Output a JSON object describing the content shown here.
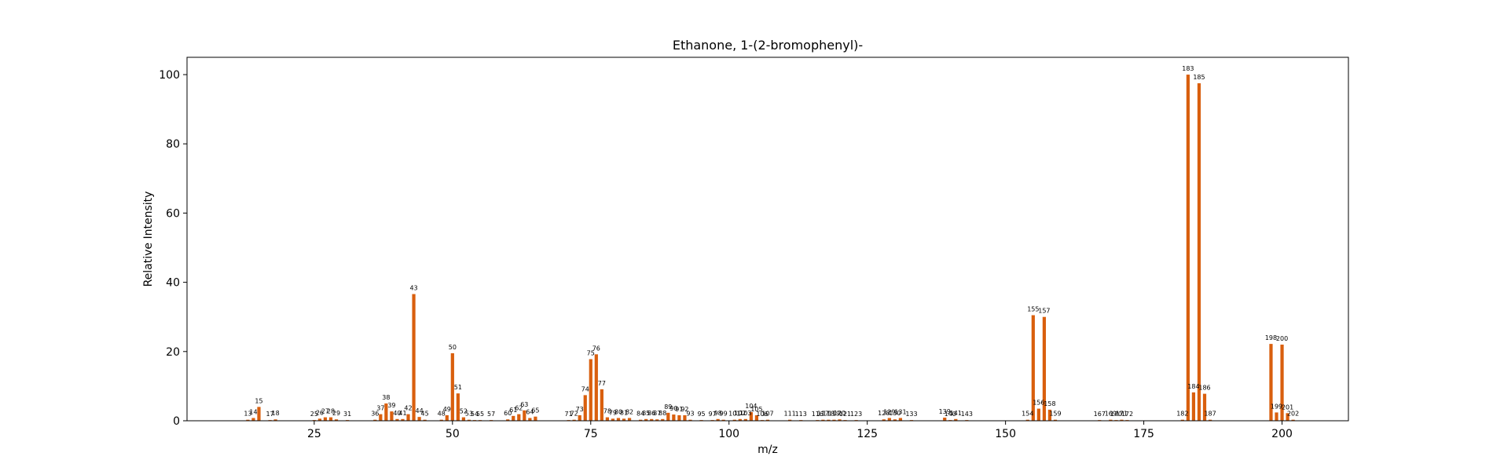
{
  "chart_data": {
    "type": "bar",
    "title": "Ethanone, 1-(2-bromophenyl)-",
    "xlabel": "m/z",
    "ylabel": "Relative Intensity",
    "xlim": [
      2,
      212
    ],
    "ylim": [
      0,
      105
    ],
    "x_ticks": [
      25,
      50,
      75,
      100,
      125,
      150,
      175,
      200
    ],
    "y_ticks": [
      0,
      20,
      40,
      60,
      80,
      100
    ],
    "bar_color": "#d95f0e",
    "grid": false,
    "peaks": [
      {
        "mz": 13,
        "intensity": 0.3
      },
      {
        "mz": 14,
        "intensity": 0.8
      },
      {
        "mz": 15,
        "intensity": 4.0
      },
      {
        "mz": 17,
        "intensity": 0.2
      },
      {
        "mz": 18,
        "intensity": 0.4
      },
      {
        "mz": 25,
        "intensity": 0.2
      },
      {
        "mz": 26,
        "intensity": 0.6
      },
      {
        "mz": 27,
        "intensity": 1.0
      },
      {
        "mz": 28,
        "intensity": 1.0
      },
      {
        "mz": 29,
        "intensity": 0.4
      },
      {
        "mz": 31,
        "intensity": 0.2
      },
      {
        "mz": 36,
        "intensity": 0.3
      },
      {
        "mz": 37,
        "intensity": 1.9
      },
      {
        "mz": 38,
        "intensity": 5.0
      },
      {
        "mz": 39,
        "intensity": 2.7
      },
      {
        "mz": 40,
        "intensity": 0.5
      },
      {
        "mz": 41,
        "intensity": 0.5
      },
      {
        "mz": 42,
        "intensity": 1.9
      },
      {
        "mz": 43,
        "intensity": 36.6
      },
      {
        "mz": 44,
        "intensity": 1.1
      },
      {
        "mz": 45,
        "intensity": 0.3
      },
      {
        "mz": 48,
        "intensity": 0.3
      },
      {
        "mz": 49,
        "intensity": 1.6
      },
      {
        "mz": 50,
        "intensity": 19.5
      },
      {
        "mz": 51,
        "intensity": 7.9
      },
      {
        "mz": 52,
        "intensity": 1.0
      },
      {
        "mz": 53,
        "intensity": 0.3
      },
      {
        "mz": 54,
        "intensity": 0.2
      },
      {
        "mz": 55,
        "intensity": 0.2
      },
      {
        "mz": 57,
        "intensity": 0.2
      },
      {
        "mz": 60,
        "intensity": 0.4
      },
      {
        "mz": 61,
        "intensity": 1.4
      },
      {
        "mz": 62,
        "intensity": 1.9
      },
      {
        "mz": 63,
        "intensity": 3.0
      },
      {
        "mz": 64,
        "intensity": 0.8
      },
      {
        "mz": 65,
        "intensity": 1.2
      },
      {
        "mz": 71,
        "intensity": 0.2
      },
      {
        "mz": 72,
        "intensity": 0.3
      },
      {
        "mz": 73,
        "intensity": 1.6
      },
      {
        "mz": 74,
        "intensity": 7.4
      },
      {
        "mz": 75,
        "intensity": 17.8
      },
      {
        "mz": 76,
        "intensity": 19.2
      },
      {
        "mz": 77,
        "intensity": 9.1
      },
      {
        "mz": 78,
        "intensity": 1.0
      },
      {
        "mz": 79,
        "intensity": 0.6
      },
      {
        "mz": 80,
        "intensity": 0.8
      },
      {
        "mz": 81,
        "intensity": 0.6
      },
      {
        "mz": 82,
        "intensity": 0.8
      },
      {
        "mz": 84,
        "intensity": 0.3
      },
      {
        "mz": 85,
        "intensity": 0.5
      },
      {
        "mz": 86,
        "intensity": 0.5
      },
      {
        "mz": 87,
        "intensity": 0.4
      },
      {
        "mz": 88,
        "intensity": 0.5
      },
      {
        "mz": 89,
        "intensity": 2.3
      },
      {
        "mz": 90,
        "intensity": 1.8
      },
      {
        "mz": 91,
        "intensity": 1.6
      },
      {
        "mz": 92,
        "intensity": 1.6
      },
      {
        "mz": 93,
        "intensity": 0.3
      },
      {
        "mz": 95,
        "intensity": 0.2
      },
      {
        "mz": 97,
        "intensity": 0.2
      },
      {
        "mz": 98,
        "intensity": 0.5
      },
      {
        "mz": 99,
        "intensity": 0.3
      },
      {
        "mz": 101,
        "intensity": 0.3
      },
      {
        "mz": 102,
        "intensity": 0.5
      },
      {
        "mz": 103,
        "intensity": 0.5
      },
      {
        "mz": 104,
        "intensity": 2.5
      },
      {
        "mz": 105,
        "intensity": 1.6
      },
      {
        "mz": 106,
        "intensity": 0.2
      },
      {
        "mz": 107,
        "intensity": 0.3
      },
      {
        "mz": 111,
        "intensity": 0.3
      },
      {
        "mz": 113,
        "intensity": 0.2
      },
      {
        "mz": 116,
        "intensity": 0.2
      },
      {
        "mz": 117,
        "intensity": 0.3
      },
      {
        "mz": 118,
        "intensity": 0.3
      },
      {
        "mz": 119,
        "intensity": 0.3
      },
      {
        "mz": 120,
        "intensity": 0.4
      },
      {
        "mz": 121,
        "intensity": 0.2
      },
      {
        "mz": 123,
        "intensity": 0.2
      },
      {
        "mz": 128,
        "intensity": 0.4
      },
      {
        "mz": 129,
        "intensity": 0.8
      },
      {
        "mz": 130,
        "intensity": 0.4
      },
      {
        "mz": 131,
        "intensity": 0.8
      },
      {
        "mz": 133,
        "intensity": 0.2
      },
      {
        "mz": 139,
        "intensity": 0.9
      },
      {
        "mz": 140,
        "intensity": 0.2
      },
      {
        "mz": 141,
        "intensity": 0.5
      },
      {
        "mz": 143,
        "intensity": 0.2
      },
      {
        "mz": 154,
        "intensity": 0.3
      },
      {
        "mz": 155,
        "intensity": 30.5
      },
      {
        "mz": 156,
        "intensity": 3.5
      },
      {
        "mz": 157,
        "intensity": 30.0
      },
      {
        "mz": 158,
        "intensity": 3.2
      },
      {
        "mz": 159,
        "intensity": 0.3
      },
      {
        "mz": 167,
        "intensity": 0.2
      },
      {
        "mz": 169,
        "intensity": 0.3
      },
      {
        "mz": 170,
        "intensity": 0.2
      },
      {
        "mz": 171,
        "intensity": 0.3
      },
      {
        "mz": 172,
        "intensity": 0.2
      },
      {
        "mz": 182,
        "intensity": 0.3
      },
      {
        "mz": 183,
        "intensity": 100.0
      },
      {
        "mz": 184,
        "intensity": 8.2
      },
      {
        "mz": 185,
        "intensity": 97.5
      },
      {
        "mz": 186,
        "intensity": 7.8
      },
      {
        "mz": 187,
        "intensity": 0.3
      },
      {
        "mz": 198,
        "intensity": 22.2
      },
      {
        "mz": 199,
        "intensity": 2.4
      },
      {
        "mz": 200,
        "intensity": 22.0
      },
      {
        "mz": 201,
        "intensity": 2.2
      },
      {
        "mz": 202,
        "intensity": 0.3
      }
    ]
  }
}
